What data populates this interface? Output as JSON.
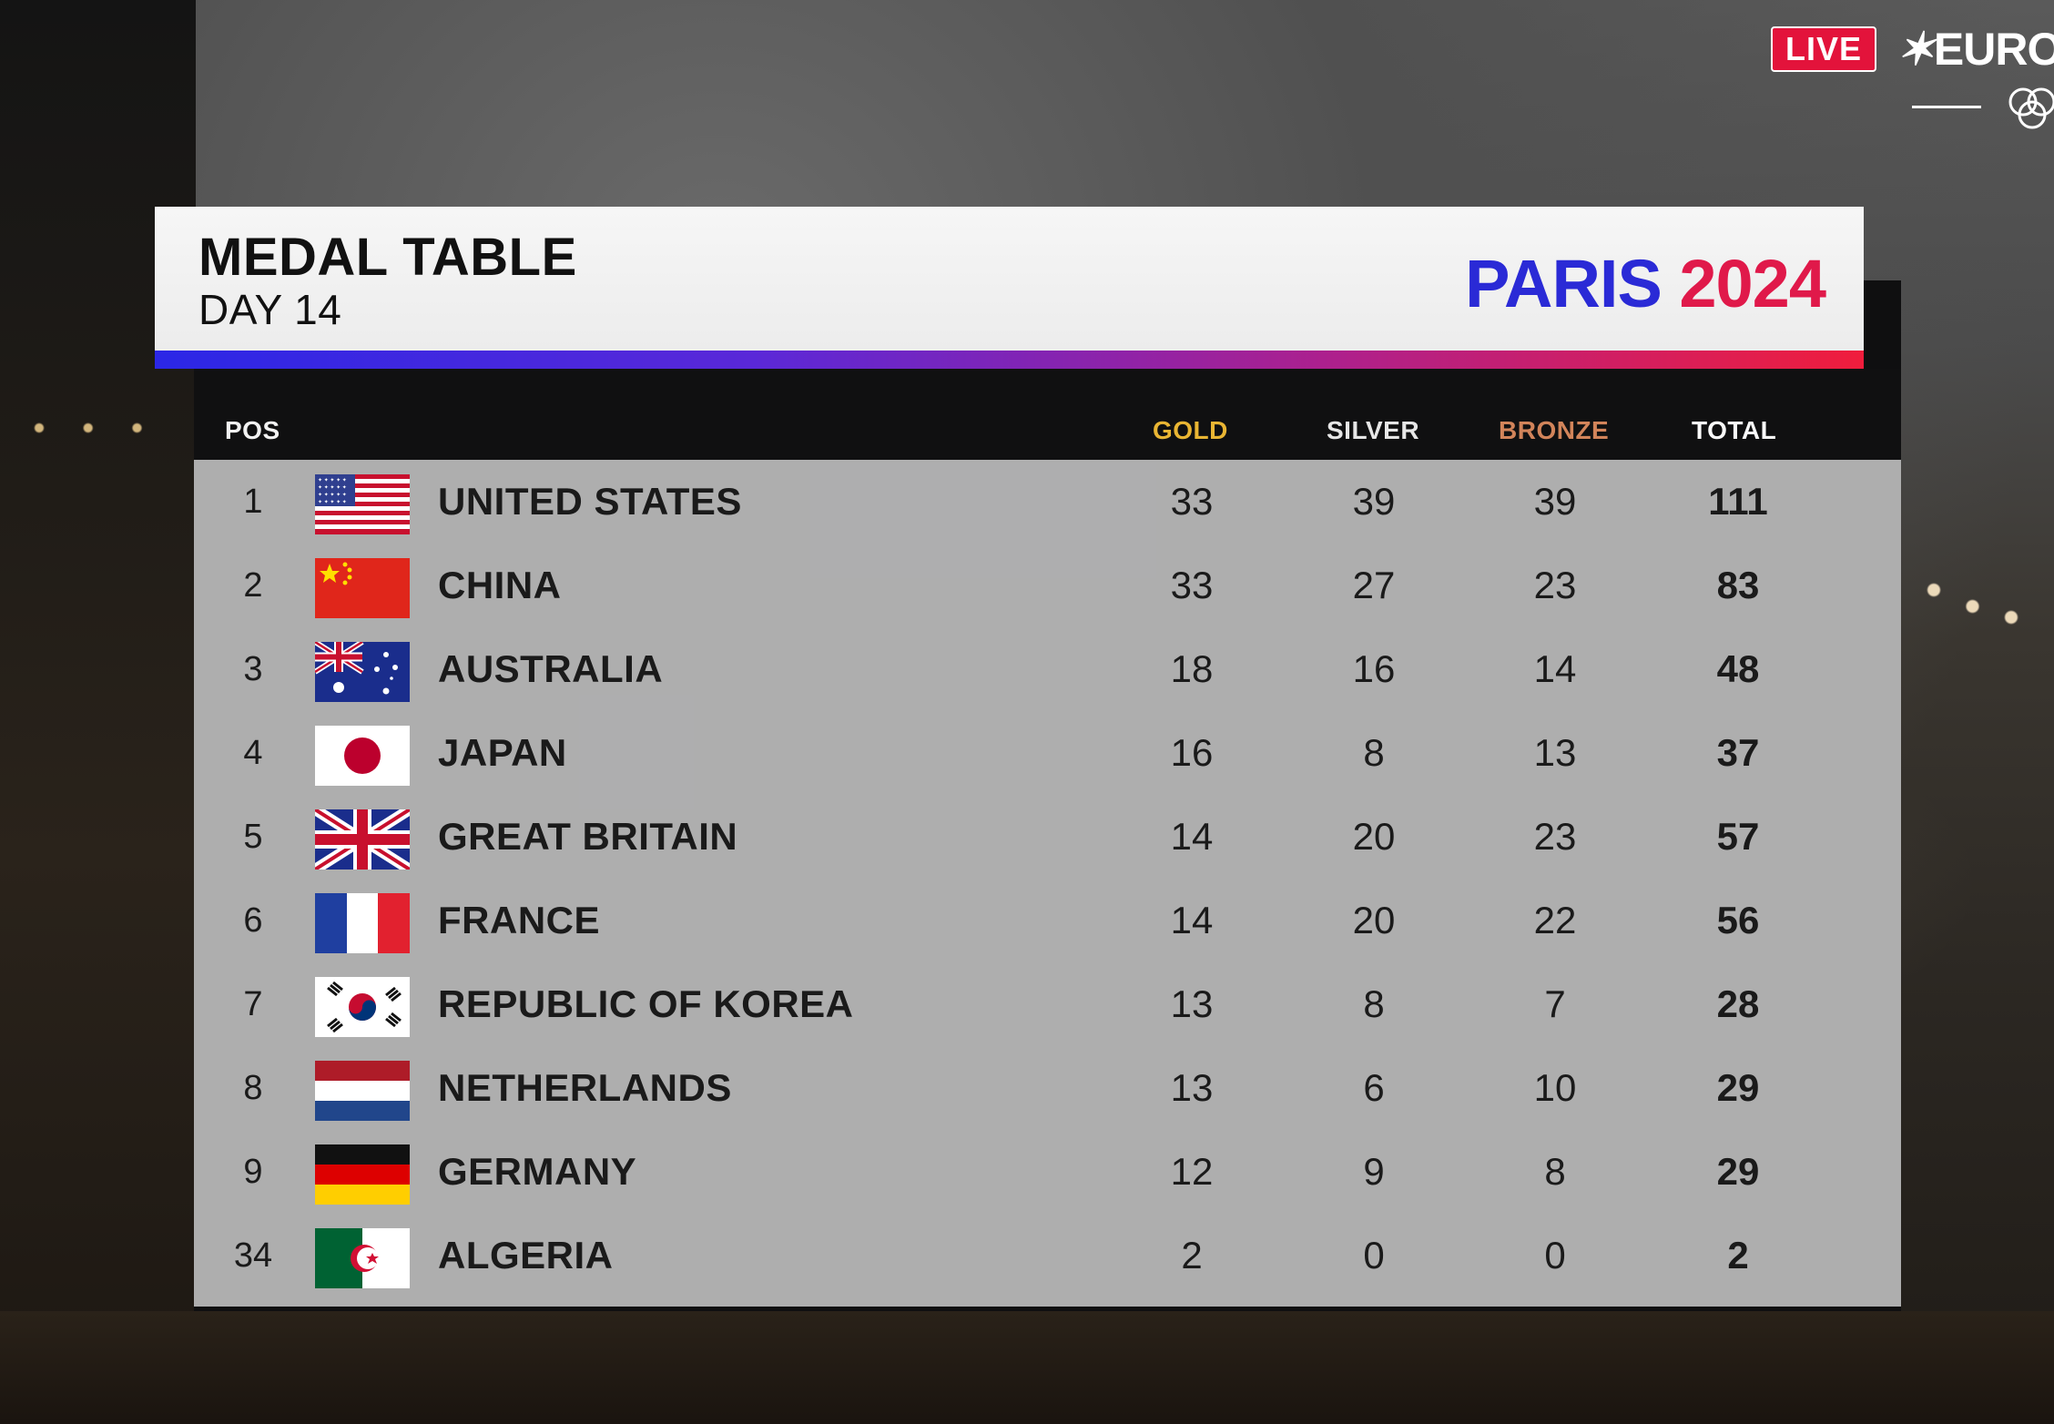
{
  "broadcast": {
    "live_label": "LIVE",
    "channel_name": "EUROS"
  },
  "header": {
    "title": "MEDAL TABLE",
    "subtitle": "DAY 14",
    "logo_word": "PARIS",
    "logo_year": "2024"
  },
  "columns": {
    "pos": "POS",
    "gold": "GOLD",
    "silver": "SILVER",
    "bronze": "BRONZE",
    "total": "TOTAL"
  },
  "colors": {
    "gold_header": "#e9b533",
    "bronze_header": "#d2845a",
    "live_badge": "#e3133b",
    "logo_blue": "#2a2ad6",
    "logo_red": "#e0194a"
  },
  "rows": [
    {
      "pos": "1",
      "flag": "flag-usa-icon",
      "country": "UNITED STATES",
      "gold": "33",
      "silver": "39",
      "bronze": "39",
      "total": "111"
    },
    {
      "pos": "2",
      "flag": "flag-china-icon",
      "country": "CHINA",
      "gold": "33",
      "silver": "27",
      "bronze": "23",
      "total": "83"
    },
    {
      "pos": "3",
      "flag": "flag-australia-icon",
      "country": "AUSTRALIA",
      "gold": "18",
      "silver": "16",
      "bronze": "14",
      "total": "48"
    },
    {
      "pos": "4",
      "flag": "flag-japan-icon",
      "country": "JAPAN",
      "gold": "16",
      "silver": "8",
      "bronze": "13",
      "total": "37"
    },
    {
      "pos": "5",
      "flag": "flag-great-britain-icon",
      "country": "GREAT BRITAIN",
      "gold": "14",
      "silver": "20",
      "bronze": "23",
      "total": "57"
    },
    {
      "pos": "6",
      "flag": "flag-france-icon",
      "country": "FRANCE",
      "gold": "14",
      "silver": "20",
      "bronze": "22",
      "total": "56"
    },
    {
      "pos": "7",
      "flag": "flag-korea-icon",
      "country": "REPUBLIC OF KOREA",
      "gold": "13",
      "silver": "8",
      "bronze": "7",
      "total": "28"
    },
    {
      "pos": "8",
      "flag": "flag-netherlands-icon",
      "country": "NETHERLANDS",
      "gold": "13",
      "silver": "6",
      "bronze": "10",
      "total": "29"
    },
    {
      "pos": "9",
      "flag": "flag-germany-icon",
      "country": "GERMANY",
      "gold": "12",
      "silver": "9",
      "bronze": "8",
      "total": "29"
    },
    {
      "pos": "34",
      "flag": "flag-algeria-icon",
      "country": "ALGERIA",
      "gold": "2",
      "silver": "0",
      "bronze": "0",
      "total": "2"
    }
  ]
}
